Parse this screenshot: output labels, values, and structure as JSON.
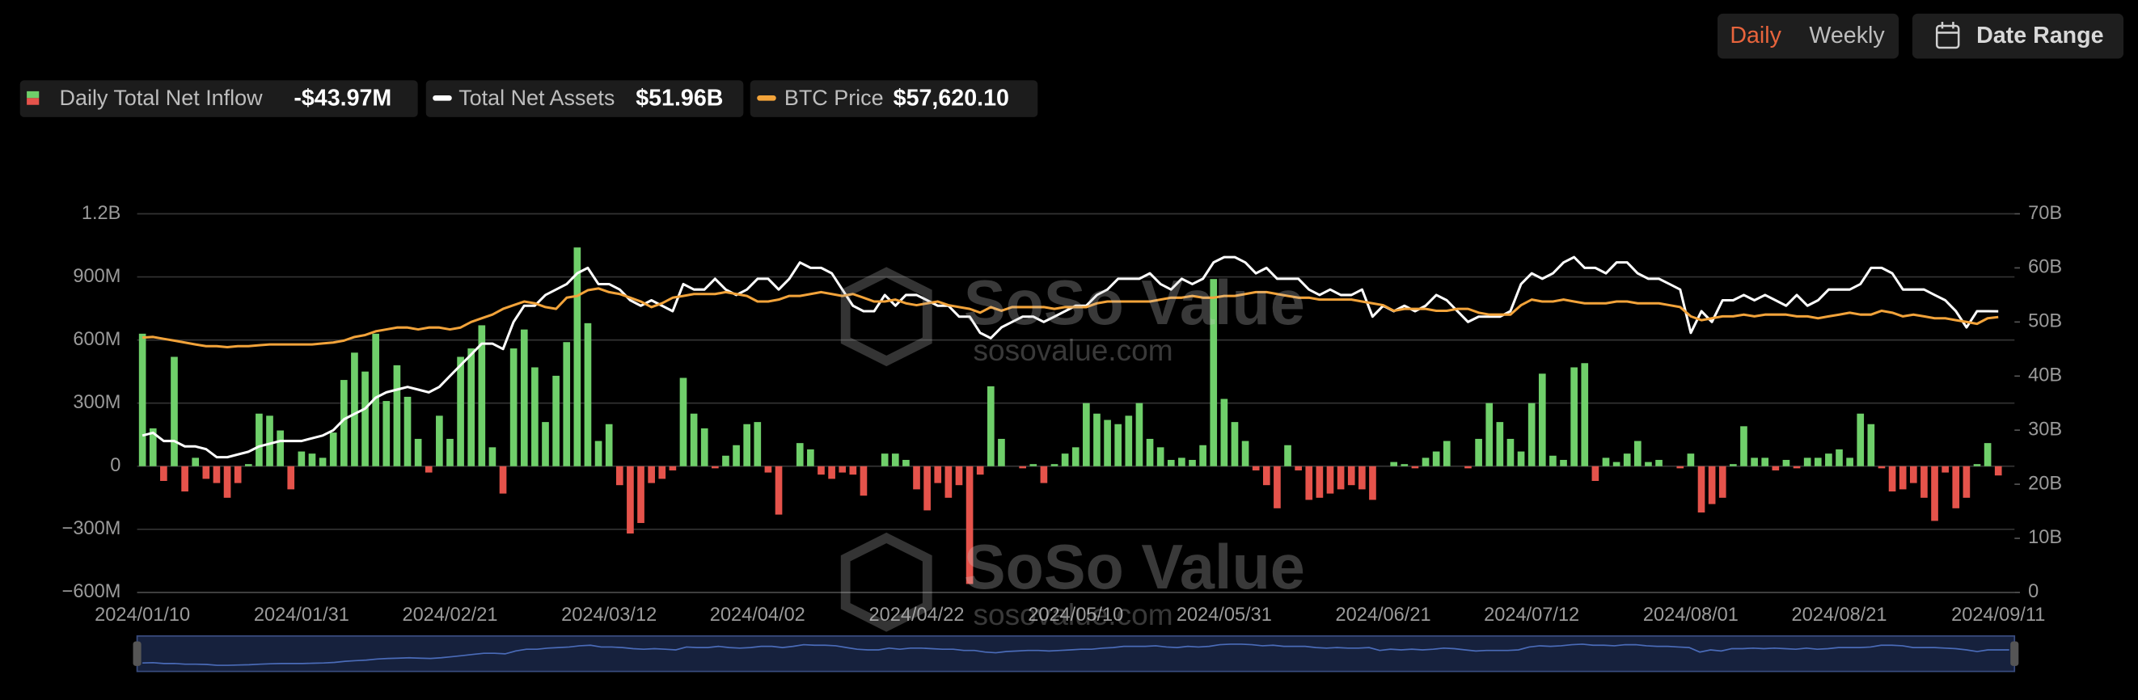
{
  "controls": {
    "periods": [
      "Daily",
      "Weekly"
    ],
    "date_range": "Date Range"
  },
  "watermark": {
    "brand": "SoSo Value",
    "site": "sosovalue.com"
  },
  "chart_data": {
    "type": "combo",
    "categories": [
      "2024/01/10",
      null,
      null,
      null,
      null,
      null,
      null,
      null,
      null,
      null,
      null,
      null,
      null,
      null,
      null,
      "2024/01/31",
      null,
      null,
      null,
      null,
      null,
      null,
      null,
      null,
      null,
      null,
      null,
      null,
      null,
      "2024/02/21",
      null,
      null,
      null,
      null,
      null,
      null,
      null,
      null,
      null,
      null,
      null,
      null,
      null,
      null,
      "2024/03/12",
      null,
      null,
      null,
      null,
      null,
      null,
      null,
      null,
      null,
      null,
      null,
      null,
      null,
      "2024/04/02",
      null,
      null,
      null,
      null,
      null,
      null,
      null,
      null,
      null,
      null,
      null,
      null,
      null,
      null,
      "2024/04/22",
      null,
      null,
      null,
      null,
      null,
      null,
      null,
      null,
      null,
      null,
      null,
      null,
      null,
      null,
      "2024/05/10",
      null,
      null,
      null,
      null,
      null,
      null,
      null,
      null,
      null,
      null,
      null,
      null,
      null,
      "2024/05/31",
      null,
      null,
      null,
      null,
      null,
      null,
      null,
      null,
      null,
      null,
      null,
      null,
      null,
      null,
      "2024/06/21",
      null,
      null,
      null,
      null,
      null,
      null,
      null,
      null,
      null,
      null,
      null,
      null,
      null,
      "2024/07/12",
      null,
      null,
      null,
      null,
      null,
      null,
      null,
      null,
      null,
      null,
      null,
      null,
      null,
      null,
      "2024/08/01",
      null,
      null,
      null,
      null,
      null,
      null,
      null,
      null,
      null,
      null,
      null,
      null,
      null,
      "2024/08/21",
      null,
      null,
      null,
      null,
      null,
      null,
      null,
      null,
      null,
      null,
      null,
      null,
      null,
      null,
      "2024/09/11"
    ],
    "series": [
      {
        "name": "Daily Total Net Inflow",
        "type": "bar",
        "latest_label": "-$43.97M",
        "color": "#6fcf6a",
        "negative_color": "#e5534b",
        "values": [
          630000000.0,
          180000000.0,
          -70000000.0,
          520000000.0,
          -120000000.0,
          40000000.0,
          -60000000.0,
          -80000000.0,
          -150000000.0,
          -80000000.0,
          10000000.0,
          250000000.0,
          240000000.0,
          170000000.0,
          -110000000.0,
          70000000.0,
          60000000.0,
          40000000.0,
          160000000.0,
          410000000.0,
          540000000.0,
          450000000.0,
          630000000.0,
          310000000.0,
          480000000.0,
          330000000.0,
          130000000.0,
          -30000000.0,
          240000000.0,
          130000000.0,
          520000000.0,
          560000000.0,
          670000000.0,
          90000000.0,
          -130000000.0,
          560000000.0,
          650000000.0,
          470000000.0,
          210000000.0,
          430000000.0,
          590000000.0,
          1040000000.0,
          680000000.0,
          120000000.0,
          200000000.0,
          -90000000.0,
          -320000000.0,
          -270000000.0,
          -80000000.0,
          -60000000.0,
          -20000000.0,
          420000000.0,
          250000000.0,
          180000000.0,
          -10000000.0,
          50000000.0,
          100000000.0,
          200000000.0,
          210000000.0,
          -30000000.0,
          -230000000.0,
          0,
          110000000.0,
          80000000.0,
          -40000000.0,
          -60000000.0,
          -30000000.0,
          -40000000.0,
          -140000000.0,
          0,
          60000000.0,
          60000000.0,
          30000000.0,
          -110000000.0,
          -210000000.0,
          -80000000.0,
          -150000000.0,
          -90000000.0,
          -560000000.0,
          -40000000.0,
          380000000.0,
          130000000.0,
          0,
          -10000000.0,
          10000000.0,
          -80000000.0,
          10000000.0,
          60000000.0,
          90000000.0,
          300000000.0,
          250000000.0,
          220000000.0,
          200000000.0,
          240000000.0,
          300000000.0,
          130000000.0,
          90000000.0,
          30000000.0,
          40000000.0,
          30000000.0,
          100000000.0,
          890000000.0,
          320000000.0,
          210000000.0,
          120000000.0,
          -20000000.0,
          -90000000.0,
          -200000000.0,
          100000000.0,
          -20000000.0,
          -160000000.0,
          -150000000.0,
          -130000000.0,
          -110000000.0,
          -90000000.0,
          -110000000.0,
          -160000000.0,
          0,
          20000000.0,
          10000000.0,
          -10000000.0,
          40000000.0,
          70000000.0,
          120000000.0,
          0,
          -10000000.0,
          130000000.0,
          300000000.0,
          210000000.0,
          130000000.0,
          70000000.0,
          300000000.0,
          440000000.0,
          50000000.0,
          30000000.0,
          470000000.0,
          490000000.0,
          -70000000.0,
          40000000.0,
          20000000.0,
          60000000.0,
          120000000.0,
          20000000.0,
          30000000.0,
          0,
          -10000000.0,
          60000000.0,
          -220000000.0,
          -180000000.0,
          -150000000.0,
          10000000.0,
          190000000.0,
          40000000.0,
          40000000.0,
          -20000000.0,
          30000000.0,
          -10000000.0,
          40000000.0,
          40000000.0,
          60000000.0,
          80000000.0,
          40000000.0,
          250000000.0,
          200000000.0,
          -10000000.0,
          -120000000.0,
          -110000000.0,
          -80000000.0,
          -150000000.0,
          -260000000.0,
          -30000000.0,
          -200000000.0,
          -150000000.0,
          10000000.0,
          110000000.0,
          -43970000.0
        ]
      },
      {
        "name": "Total Net Assets",
        "type": "line",
        "axis": "y2",
        "latest_label": "$51.96B",
        "color": "#ffffff",
        "values": [
          29,
          29.5,
          28,
          28,
          27,
          27,
          26.5,
          25,
          25,
          25.5,
          26,
          27,
          27.5,
          28,
          28,
          28,
          28.5,
          29,
          30,
          32,
          33,
          34,
          36,
          37,
          37.5,
          38,
          37.5,
          37,
          38,
          40,
          42,
          44,
          46,
          46,
          45,
          50,
          53,
          53,
          55,
          56,
          57,
          59,
          60,
          57,
          57,
          56,
          54,
          53,
          54,
          53,
          52,
          57,
          56,
          56,
          58,
          56,
          55,
          56,
          58,
          58,
          56,
          58,
          61,
          60,
          60,
          59,
          56,
          53,
          52,
          52,
          55,
          53,
          55,
          55,
          54,
          53,
          53,
          51,
          51,
          48,
          47,
          49,
          50,
          51,
          51,
          50,
          51,
          52,
          53,
          53,
          55,
          56,
          58,
          58,
          58,
          59,
          57,
          56,
          58,
          57,
          58,
          61,
          62,
          62,
          61,
          59,
          60,
          58,
          58,
          58,
          56,
          55,
          56,
          55,
          55,
          56,
          51,
          53,
          52,
          53,
          52,
          53,
          55,
          54,
          52,
          50,
          51,
          51,
          51,
          52,
          57,
          59,
          58,
          59,
          61,
          62,
          60,
          60,
          59,
          61,
          61,
          59,
          58,
          58,
          57,
          56,
          48,
          52,
          50,
          54,
          54,
          55,
          54,
          55,
          54,
          53,
          55,
          53,
          54,
          56,
          56,
          56,
          57,
          60,
          60,
          59,
          56,
          56,
          56,
          55,
          54,
          52,
          49,
          52,
          52,
          51.96
        ]
      },
      {
        "name": "BTC Price",
        "type": "line",
        "axis": "y3",
        "latest_label": "$57,620.10",
        "color": "#f2a33a",
        "values": [
          46600,
          47000,
          46000,
          45000,
          44000,
          43000,
          42000,
          42000,
          41500,
          42000,
          42000,
          42500,
          43000,
          43000,
          43000,
          43000,
          43000,
          43500,
          44000,
          45000,
          47000,
          48000,
          50000,
          51000,
          52000,
          52000,
          51000,
          52000,
          52000,
          51000,
          52000,
          55000,
          57000,
          59000,
          62000,
          64000,
          66000,
          65000,
          63000,
          62000,
          68000,
          69000,
          72000,
          73000,
          71000,
          70000,
          68000,
          66000,
          63000,
          65000,
          68000,
          69000,
          70000,
          70000,
          70000,
          71000,
          70000,
          69000,
          66000,
          66000,
          67000,
          69000,
          69000,
          70000,
          71000,
          70000,
          69000,
          70000,
          68000,
          66000,
          66000,
          67000,
          65000,
          64000,
          65000,
          66000,
          64000,
          63000,
          62000,
          60000,
          63000,
          61000,
          63000,
          63000,
          63000,
          63000,
          62000,
          63000,
          63000,
          63000,
          65000,
          66000,
          66000,
          66000,
          66000,
          66000,
          67000,
          68000,
          68000,
          69000,
          68000,
          68000,
          69000,
          69000,
          70000,
          71000,
          71000,
          70000,
          69000,
          68000,
          68000,
          67000,
          67000,
          67000,
          67000,
          66000,
          65000,
          64000,
          61000,
          62000,
          62000,
          62000,
          61000,
          61000,
          62000,
          62000,
          60000,
          59000,
          59000,
          59000,
          64000,
          67000,
          66000,
          66000,
          67000,
          66000,
          65000,
          65000,
          65000,
          66000,
          66000,
          65000,
          65000,
          65000,
          64000,
          63000,
          58000,
          56000,
          57000,
          58000,
          58000,
          59000,
          58000,
          59000,
          59000,
          59000,
          58000,
          58000,
          57000,
          58000,
          59000,
          60000,
          59000,
          59000,
          61000,
          60000,
          58000,
          59000,
          58000,
          57000,
          57000,
          56000,
          55000,
          54000,
          57000,
          57620.1
        ]
      }
    ],
    "ylim": [
      -600000000.0,
      1200000000.0
    ],
    "yticks": [
      {
        "value": -600000000.0,
        "label": "−600M"
      },
      {
        "value": -300000000.0,
        "label": "−300M"
      },
      0,
      {
        "value": 300000000.0,
        "label": "300M"
      },
      {
        "value": 600000000.0,
        "label": "600M"
      },
      {
        "value": 900000000.0,
        "label": "900M"
      },
      {
        "value": 1200000000.0,
        "label": "1.2B"
      }
    ],
    "y2lim": [
      0,
      70
    ],
    "y2ticks": [
      0,
      {
        "value": 10,
        "label": "10B"
      },
      {
        "value": 20,
        "label": "20B"
      },
      {
        "value": 30,
        "label": "30B"
      },
      {
        "value": 40,
        "label": "40B"
      },
      {
        "value": 50,
        "label": "50B"
      },
      {
        "value": 60,
        "label": "60B"
      },
      {
        "value": 70,
        "label": "70B"
      }
    ],
    "y3lim": [
      -90000,
      113000
    ],
    "grid": true
  }
}
